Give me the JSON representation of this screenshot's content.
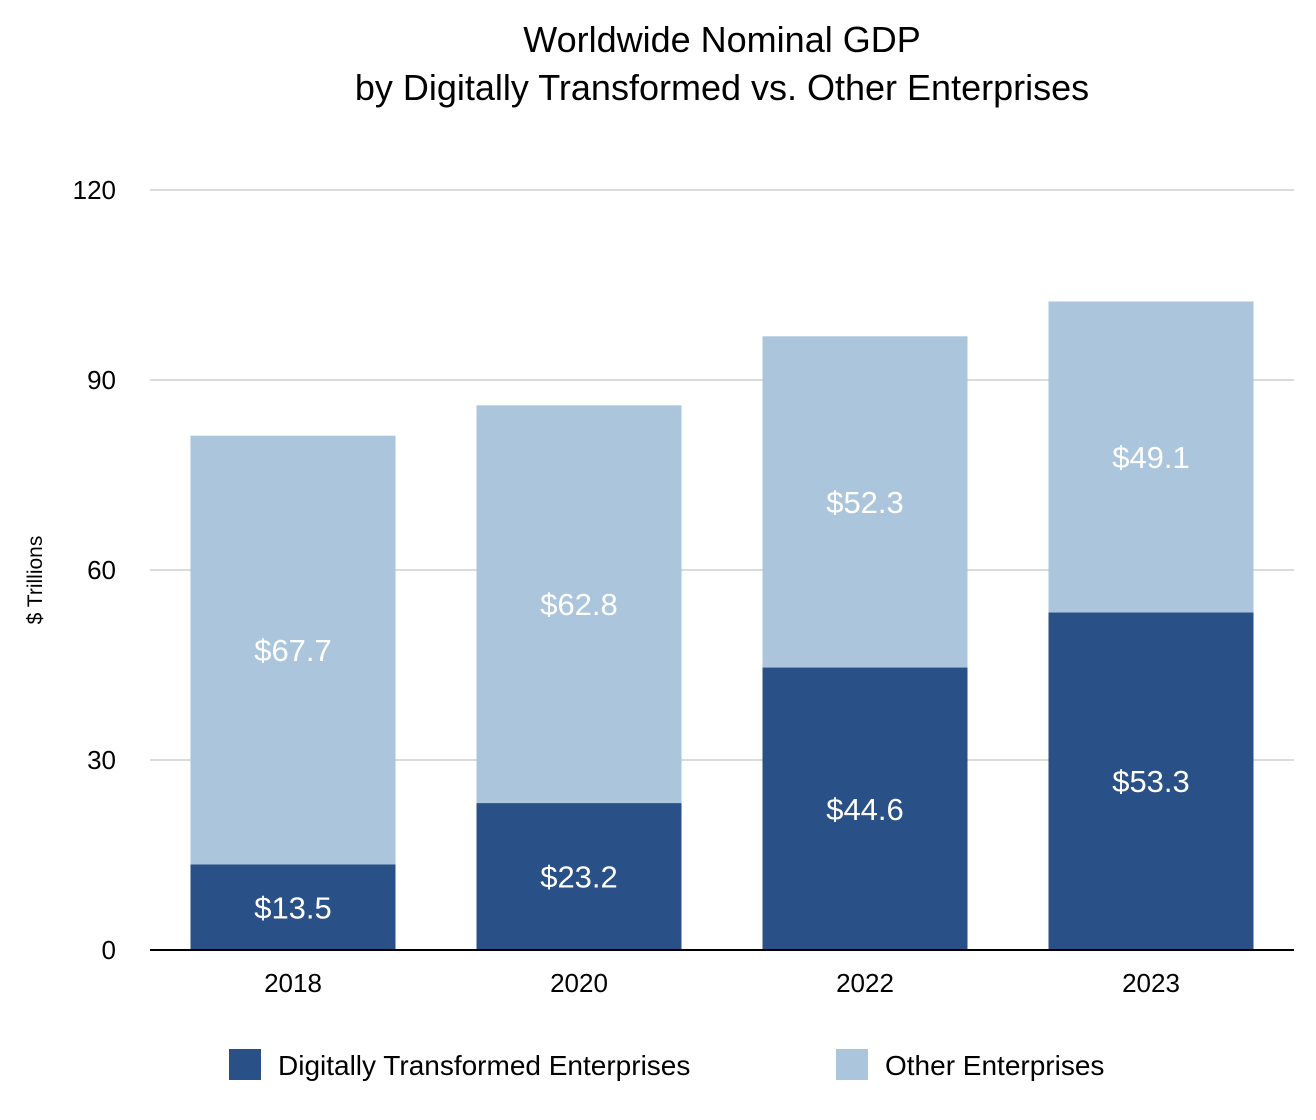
{
  "chart_data": {
    "type": "bar",
    "stacked": true,
    "title": [
      "Worldwide Nominal GDP",
      "by Digitally Transformed vs. Other Enterprises"
    ],
    "xlabel": "",
    "ylabel": "$ Trillions",
    "categories": [
      "2018",
      "2020",
      "2022",
      "2023"
    ],
    "ylim": [
      0,
      120
    ],
    "yticks": [
      "0",
      "30",
      "60",
      "90",
      "120"
    ],
    "grid": true,
    "legend_position": "bottom",
    "series": [
      {
        "name": "Digitally Transformed Enterprises",
        "color": "#2a5088",
        "values": [
          13.5,
          23.2,
          44.6,
          53.3
        ],
        "labels": [
          "$13.5",
          "$23.2",
          "$44.6",
          "$53.3"
        ]
      },
      {
        "name": "Other Enterprises",
        "color": "#abc6dc",
        "values": [
          67.7,
          62.8,
          52.3,
          49.1
        ],
        "labels": [
          "$67.7",
          "$62.8",
          "$52.3",
          "$49.1"
        ]
      }
    ]
  }
}
